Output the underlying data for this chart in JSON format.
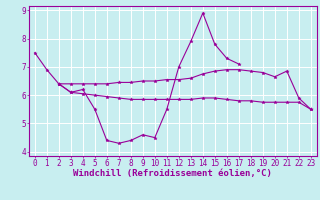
{
  "x": [
    0,
    1,
    2,
    3,
    4,
    5,
    6,
    7,
    8,
    9,
    10,
    11,
    12,
    13,
    14,
    15,
    16,
    17,
    18,
    19,
    20,
    21,
    22,
    23
  ],
  "line1": [
    7.5,
    6.9,
    6.4,
    6.1,
    6.2,
    5.5,
    4.4,
    4.3,
    4.4,
    4.6,
    4.5,
    5.5,
    7.0,
    7.9,
    8.9,
    7.8,
    7.3,
    7.1,
    null,
    null,
    null,
    null,
    null,
    null
  ],
  "line2_top": [
    null,
    null,
    6.4,
    6.4,
    6.4,
    6.4,
    6.4,
    6.45,
    6.45,
    6.5,
    6.5,
    6.55,
    6.55,
    6.6,
    6.75,
    6.85,
    6.9,
    6.9,
    6.85,
    6.8,
    6.65,
    6.85,
    5.9,
    5.5
  ],
  "line3_bot": [
    null,
    null,
    6.4,
    6.1,
    6.05,
    6.0,
    5.95,
    5.9,
    5.85,
    5.85,
    5.85,
    5.85,
    5.85,
    5.85,
    5.9,
    5.9,
    5.85,
    5.8,
    5.8,
    5.75,
    5.75,
    5.75,
    5.75,
    5.5
  ],
  "ylim": [
    4,
    9
  ],
  "yticks": [
    4,
    5,
    6,
    7,
    8,
    9
  ],
  "xlim": [
    -0.5,
    23.5
  ],
  "xticks": [
    0,
    1,
    2,
    3,
    4,
    5,
    6,
    7,
    8,
    9,
    10,
    11,
    12,
    13,
    14,
    15,
    16,
    17,
    18,
    19,
    20,
    21,
    22,
    23
  ],
  "xlabel": "Windchill (Refroidissement éolien,°C)",
  "line_color": "#990099",
  "bg_color": "#c8eef0",
  "grid_color": "#ffffff",
  "tick_fontsize": 5.5,
  "xlabel_fontsize": 6.5
}
